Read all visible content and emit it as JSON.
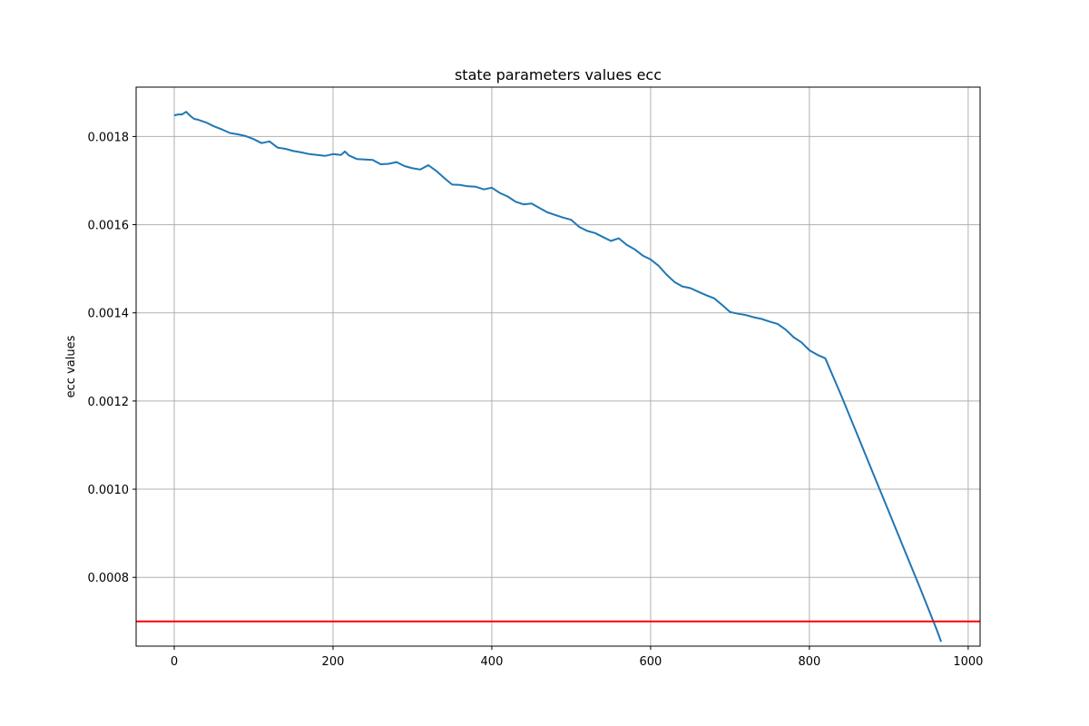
{
  "chart_data": {
    "type": "line",
    "title": "state parameters values ecc",
    "xlabel": "",
    "ylabel": "ecc values",
    "xlim": [
      -48,
      1015
    ],
    "ylim": [
      0.000644,
      0.001912
    ],
    "x_ticks": [
      0,
      200,
      400,
      600,
      800,
      1000
    ],
    "x_tick_labels": [
      "0",
      "200",
      "400",
      "600",
      "800",
      "1000"
    ],
    "y_ticks": [
      0.0008,
      0.001,
      0.0012,
      0.0014,
      0.0016,
      0.0018
    ],
    "y_tick_labels": [
      "0.0008",
      "0.0010",
      "0.0012",
      "0.0014",
      "0.0016",
      "0.0018"
    ],
    "grid": true,
    "series": [
      {
        "color": "#1f77b4",
        "x": [
          0,
          5,
          10,
          15,
          20,
          25,
          30,
          40,
          50,
          60,
          70,
          80,
          90,
          100,
          110,
          120,
          130,
          140,
          150,
          160,
          170,
          180,
          190,
          200,
          210,
          215,
          220,
          230,
          240,
          250,
          260,
          270,
          280,
          290,
          300,
          310,
          320,
          330,
          340,
          350,
          360,
          370,
          380,
          390,
          400,
          410,
          420,
          430,
          440,
          450,
          460,
          470,
          480,
          490,
          500,
          510,
          520,
          530,
          540,
          550,
          560,
          570,
          580,
          590,
          600,
          610,
          620,
          630,
          640,
          650,
          660,
          670,
          680,
          690,
          700,
          710,
          720,
          730,
          740,
          750,
          760,
          770,
          780,
          790,
          800,
          810,
          820,
          840,
          860,
          880,
          900,
          920,
          940,
          960,
          966
        ],
        "y": [
          0.001848,
          0.00185,
          0.00185,
          0.001856,
          0.001847,
          0.00184,
          0.001838,
          0.001832,
          0.001823,
          0.001816,
          0.001808,
          0.001805,
          0.001801,
          0.001794,
          0.001785,
          0.001789,
          0.001775,
          0.001772,
          0.001767,
          0.001764,
          0.00176,
          0.001758,
          0.001756,
          0.00176,
          0.001758,
          0.001766,
          0.001757,
          0.001749,
          0.001748,
          0.001747,
          0.001737,
          0.001738,
          0.001742,
          0.001733,
          0.001728,
          0.001725,
          0.001735,
          0.001722,
          0.001706,
          0.001691,
          0.00169,
          0.001687,
          0.001686,
          0.00168,
          0.001684,
          0.001672,
          0.001664,
          0.001652,
          0.001646,
          0.001648,
          0.001638,
          0.001628,
          0.001622,
          0.001616,
          0.001611,
          0.001595,
          0.001586,
          0.001581,
          0.001572,
          0.001563,
          0.001569,
          0.001554,
          0.001544,
          0.00153,
          0.001521,
          0.001507,
          0.001487,
          0.00147,
          0.00146,
          0.001456,
          0.001448,
          0.00144,
          0.001433,
          0.001418,
          0.001402,
          0.001398,
          0.001395,
          0.00139,
          0.001386,
          0.00138,
          0.001375,
          0.001362,
          0.001345,
          0.001333,
          0.001315,
          0.001305,
          0.001297,
          0.001213,
          0.001125,
          0.001037,
          0.000949,
          0.000861,
          0.000773,
          0.000683,
          0.000654
        ]
      }
    ],
    "hlines": [
      {
        "y": 0.0007,
        "color": "#ff0000"
      }
    ]
  }
}
